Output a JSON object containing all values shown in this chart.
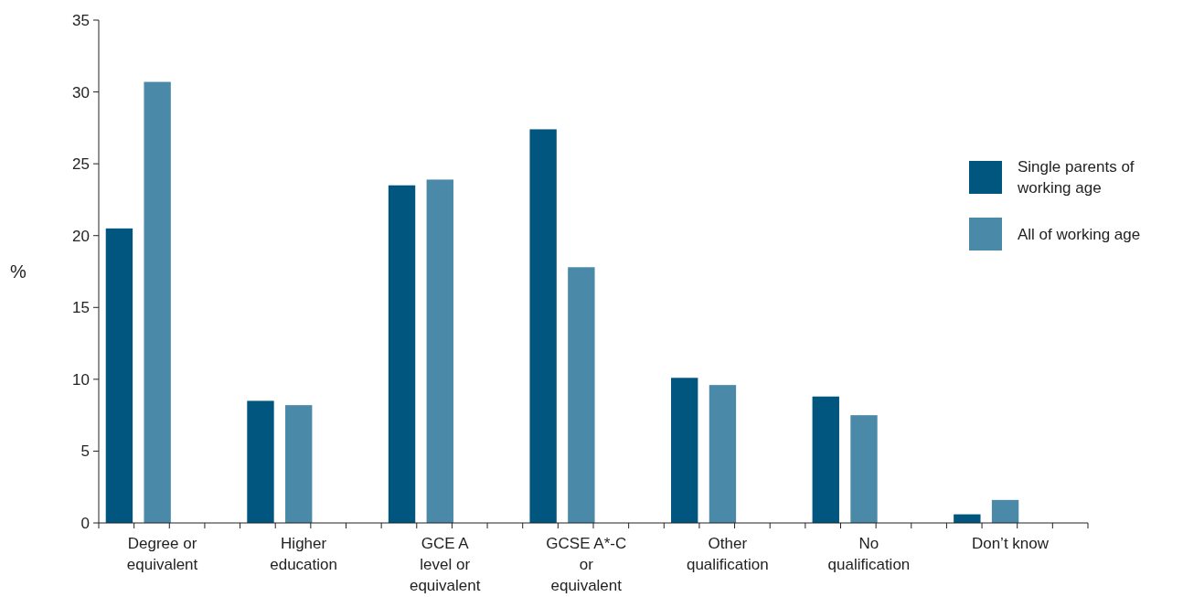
{
  "chart_data": {
    "type": "bar",
    "ylabel": "%",
    "categories": [
      "Degree or equivalent",
      "Higher education",
      "GCE A level or equivalent",
      "GCSE A*-C or equivalent",
      "Other qualification",
      "No qualification",
      "Don’t know"
    ],
    "series": [
      {
        "name": "Single parents of working age",
        "color": "#00567f",
        "values": [
          20.5,
          8.5,
          23.5,
          27.4,
          10.1,
          8.8,
          0.6
        ]
      },
      {
        "name": "All of working age",
        "color": "#4a8aa8",
        "values": [
          30.7,
          8.2,
          23.9,
          17.8,
          9.6,
          7.5,
          1.6
        ]
      }
    ],
    "ylim": [
      0,
      35
    ],
    "yticks": [
      0,
      5,
      10,
      15,
      20,
      25,
      30,
      35
    ],
    "grid": false,
    "legend": "right"
  }
}
